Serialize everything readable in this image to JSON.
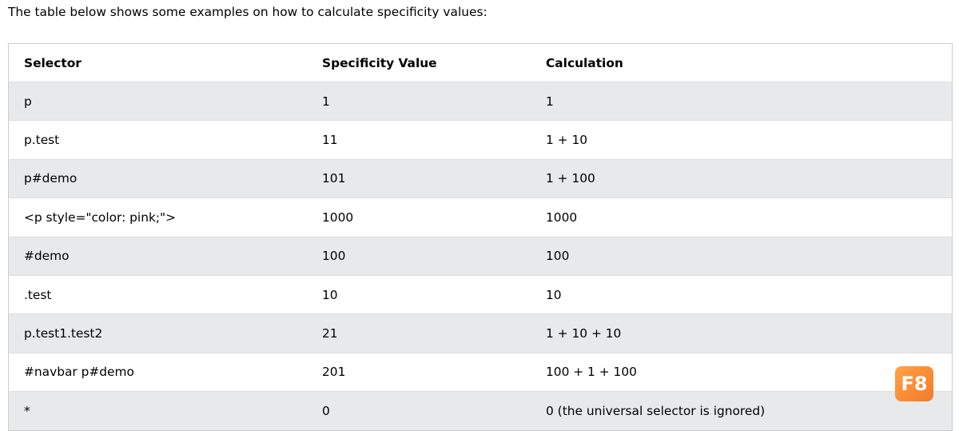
{
  "intro": "The table below shows some examples on how to calculate specificity values:",
  "table": {
    "header": [
      "Selector",
      "Specificity Value",
      "Calculation"
    ],
    "rows": [
      [
        "p",
        "1",
        "1"
      ],
      [
        "p.test",
        "11",
        "1 + 10"
      ],
      [
        "p#demo",
        "101",
        "1 + 100"
      ],
      [
        "<p style=\"color: pink;\">",
        "1000",
        "1000"
      ],
      [
        "#demo",
        "100",
        "100"
      ],
      [
        ".test",
        "10",
        "10"
      ],
      [
        "p.test1.test2",
        "21",
        "1 + 10 + 10"
      ],
      [
        "#navbar p#demo",
        "201",
        "100 + 1 + 100"
      ],
      [
        "*",
        "0",
        "0 (the universal selector is ignored)"
      ]
    ]
  },
  "badge": "F8"
}
